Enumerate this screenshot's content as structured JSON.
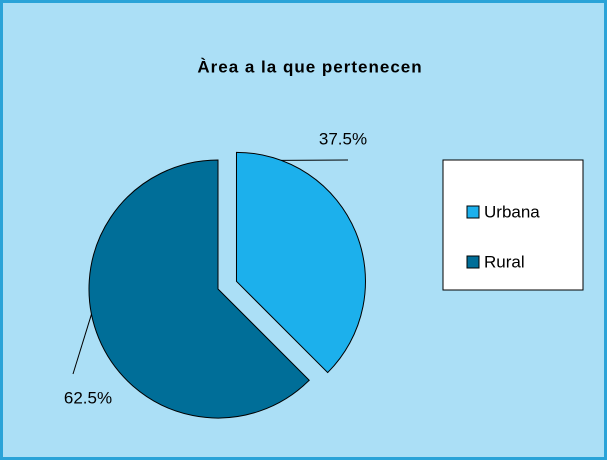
{
  "chart_data": {
    "type": "pie",
    "title": "Àrea a la que pertenecen",
    "categories": [
      "Urbana",
      "Rural"
    ],
    "values": [
      37.5,
      62.5
    ],
    "value_labels": [
      "37.5%",
      "62.5%"
    ],
    "colors": [
      "#1cb0ec",
      "#006e98"
    ],
    "legend": "right"
  }
}
